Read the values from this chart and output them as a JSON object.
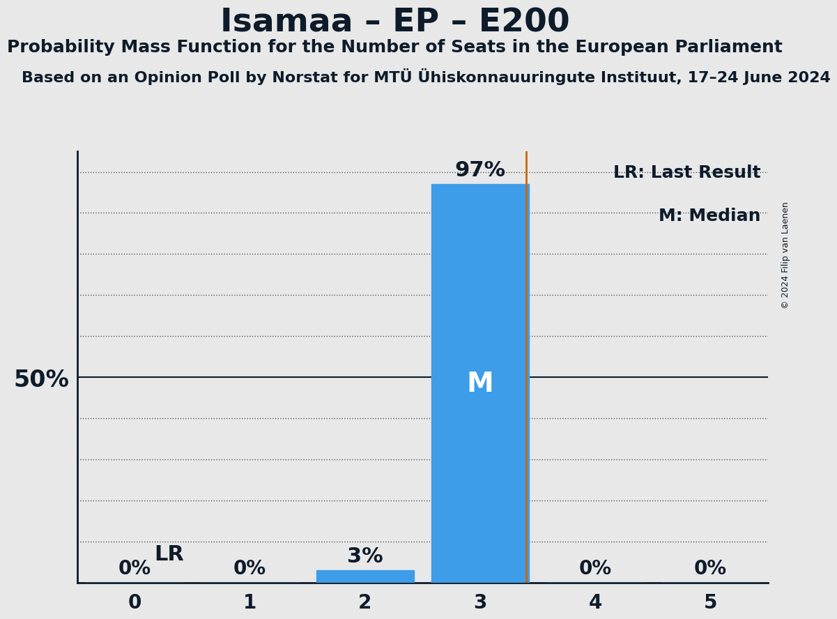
{
  "title": "Isamaa – EP – E200",
  "subtitle": "Probability Mass Function for the Number of Seats in the European Parliament",
  "subsubtitle": "Based on an Opinion Poll by Norstat for MTÜ Ühiskonnauuringute Instituut, 17–24 June 2024",
  "copyright": "© 2024 Filip van Laenen",
  "seats": [
    0,
    1,
    2,
    3,
    4,
    5
  ],
  "probabilities": [
    0.0,
    0.0,
    0.03,
    0.97,
    0.0,
    0.0
  ],
  "bar_color": "#3d9de8",
  "last_result": 3.4,
  "lr_color": "#cc6600",
  "median": 3,
  "background_color": "#e8e8e8",
  "plot_bg_color": "#e8e8e8",
  "yticks": [
    0.0,
    0.1,
    0.2,
    0.3,
    0.4,
    0.5,
    0.6,
    0.7,
    0.8,
    0.9,
    1.0
  ],
  "ylim": [
    0,
    1.05
  ],
  "xlim": [
    -0.5,
    5.5
  ],
  "title_fontsize": 34,
  "subtitle_fontsize": 18,
  "subsubtitle_fontsize": 16,
  "bar_width": 0.85,
  "grid_color": "#333333",
  "axis_color": "#0d1b2a",
  "tick_fontsize": 20,
  "pct_label_fontsize": 20,
  "median_label_fontsize": 28,
  "legend_fontsize": 18,
  "lr_label": "LR",
  "median_label": "M"
}
